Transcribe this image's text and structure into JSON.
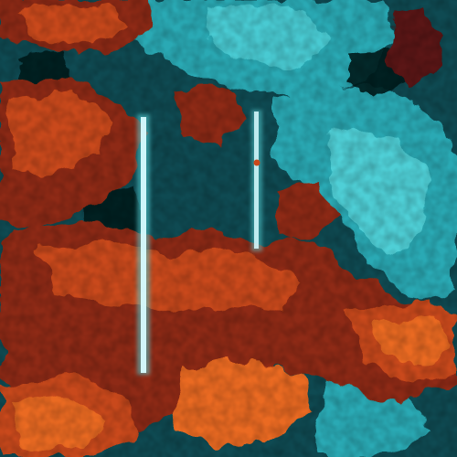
{
  "image": {
    "description_free": true,
    "palette": {
      "base_teal": "#0f4a52",
      "bright_teal": "#2aa9b4",
      "cyan_highlight": "#56d6dc",
      "deep_dark": "#061a1e",
      "burnt_orange": "#c9481a",
      "rust": "#8e2b12",
      "dark_maroon": "#5a1212",
      "hot_orange": "#ea6a22",
      "needle_glow": "#d8fbff"
    }
  }
}
